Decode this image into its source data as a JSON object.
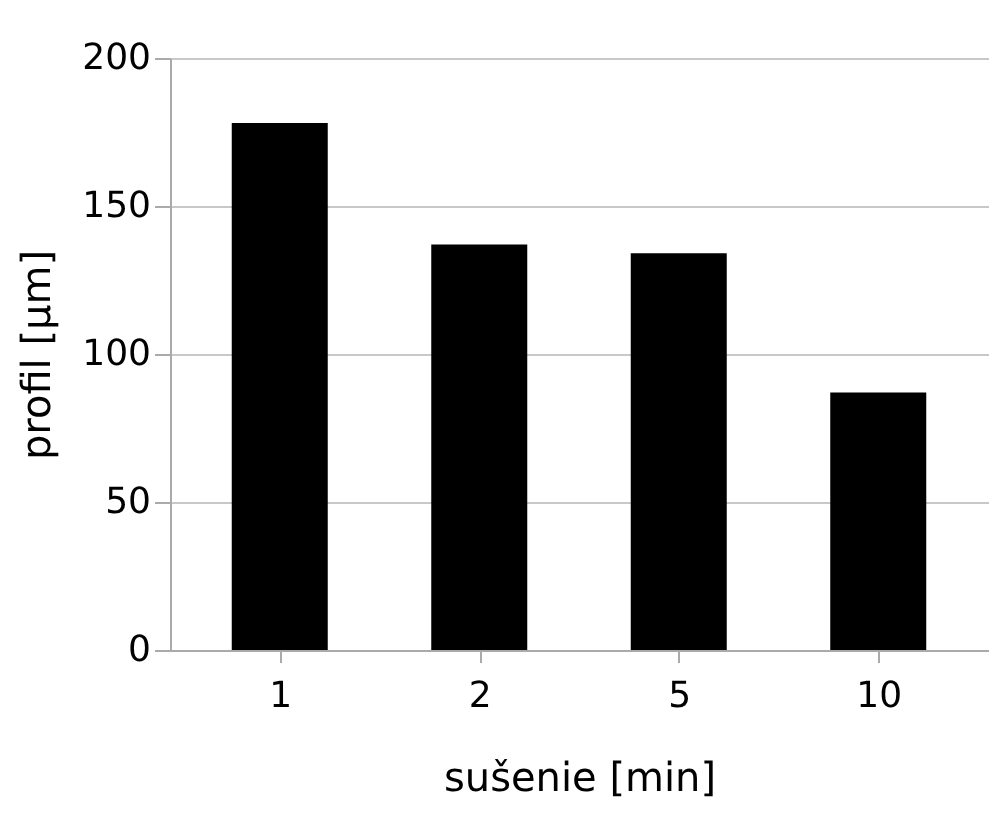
{
  "chart_data": {
    "type": "bar",
    "xlabel": "sušenie [min]",
    "ylabel": "profil [µm]",
    "categories": [
      "1",
      "2",
      "5",
      "10"
    ],
    "values": [
      178,
      137,
      134,
      87
    ],
    "color": "#000000",
    "ylim": [
      0,
      200
    ],
    "yticks": [
      0,
      50,
      100,
      150,
      200
    ],
    "grid": "y"
  }
}
